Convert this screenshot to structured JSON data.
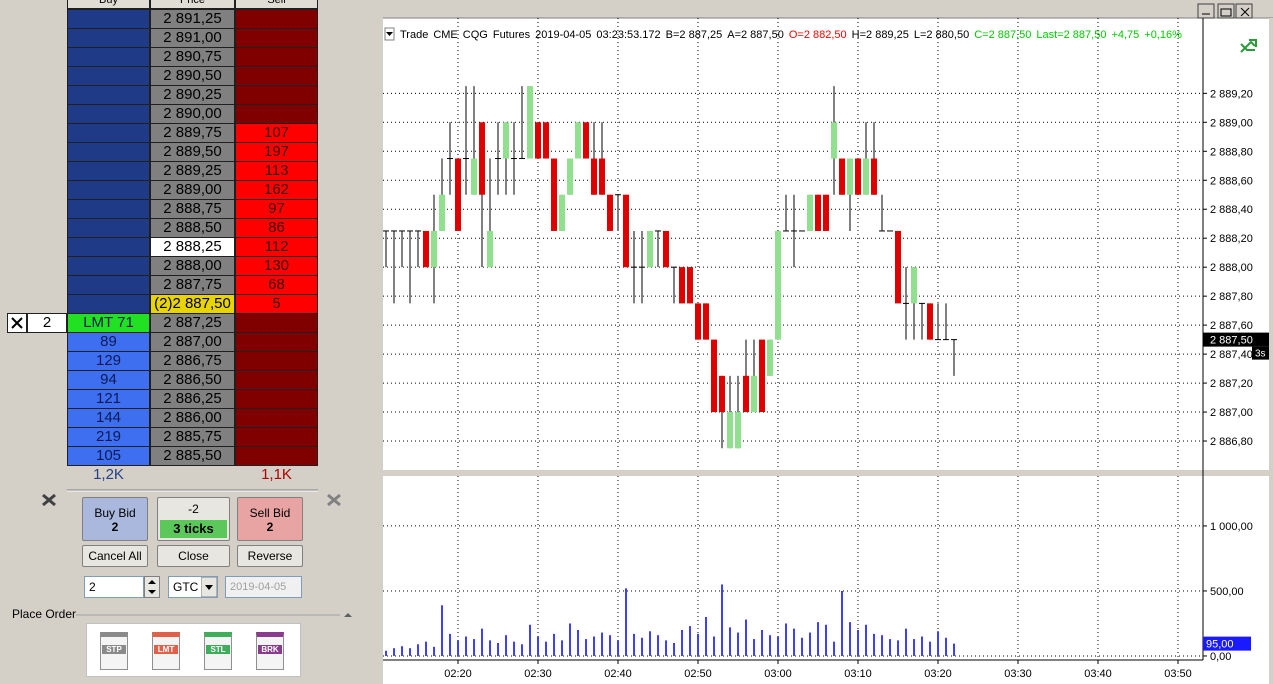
{
  "dom": {
    "headers": [
      "Buy",
      "Price",
      "Sell"
    ],
    "rows": [
      {
        "price": "2 891,25"
      },
      {
        "price": "2 891,00"
      },
      {
        "price": "2 890,75"
      },
      {
        "price": "2 890,50"
      },
      {
        "price": "2 890,25"
      },
      {
        "price": "2 890,00"
      },
      {
        "price": "2 889,75",
        "sell": 107
      },
      {
        "price": "2 889,50",
        "sell": 197
      },
      {
        "price": "2 889,25",
        "sell": 113
      },
      {
        "price": "2 889,00",
        "sell": 162
      },
      {
        "price": "2 888,75",
        "sell": 97
      },
      {
        "price": "2 888,50",
        "sell": 86
      },
      {
        "price": "2 888,25",
        "sell": 112,
        "price_bg": "#ffffff"
      },
      {
        "price": "2 888,00",
        "sell": 130
      },
      {
        "price": "2 887,75",
        "sell": 68
      },
      {
        "price": "(2)2 887,50",
        "sell": 5,
        "price_bg": "#e8d400"
      },
      {
        "price": "2 887,25",
        "buy": "LMT 71",
        "buy_bg": "#22e022",
        "order_qty": 2
      },
      {
        "price": "2 887,00",
        "buy": 89
      },
      {
        "price": "2 886,75",
        "buy": 129
      },
      {
        "price": "2 886,50",
        "buy": 94
      },
      {
        "price": "2 886,25",
        "buy": 121
      },
      {
        "price": "2 886,00",
        "buy": 144
      },
      {
        "price": "2 885,75",
        "buy": 219
      },
      {
        "price": "2 885,50",
        "buy": 105
      }
    ],
    "buy_total": "1,2K",
    "sell_total": "1,1K"
  },
  "controls": {
    "buy_button": {
      "label": "Buy Bid",
      "qty": 2
    },
    "position": -2,
    "offset": "3 ticks",
    "sell_button": {
      "label": "Sell Bid",
      "qty": 2
    },
    "buttons": [
      "Cancel All",
      "Close",
      "Reverse"
    ],
    "quantity": 2,
    "time_in_force": "GTC",
    "date": "2019-04-05",
    "section": "Place Order",
    "order_types": [
      "STP",
      "LMT",
      "STL",
      "BRK"
    ]
  },
  "info": [
    {
      "text": "Trade",
      "color": "#000000"
    },
    {
      "text": "CME",
      "color": "#000000"
    },
    {
      "text": "CQG",
      "color": "#000000"
    },
    {
      "text": "Futures",
      "color": "#000000"
    },
    {
      "text": "2019-04-05",
      "color": "#000000"
    },
    {
      "text": "03:23:53.172",
      "color": "#000000"
    },
    {
      "text": "B=2 887,25",
      "color": "#000000"
    },
    {
      "text": "A=2 887,50",
      "color": "#000000"
    },
    {
      "text": "O=2 882,50",
      "color": "#ff0000"
    },
    {
      "text": "H=2 889,25",
      "color": "#000000"
    },
    {
      "text": "L=2 880,50",
      "color": "#000000"
    },
    {
      "text": "C=2 887,50",
      "color": "#00cc00"
    },
    {
      "text": "Last=2 887,50",
      "color": "#00cc00"
    },
    {
      "text": "+4,75",
      "color": "#00cc00"
    },
    {
      "text": "+0,16%",
      "color": "#00cc00"
    }
  ],
  "chart_data": [
    {
      "type": "candlestick",
      "up_color": "#90e090",
      "down_color": "#e00000",
      "flat_color": "#000000",
      "grid": true,
      "ylim": [
        2886.6,
        2889.72
      ],
      "yticks": [
        {
          "value": 2886.8,
          "label": "2 886,80"
        },
        {
          "value": 2887.0,
          "label": "2 887,00"
        },
        {
          "value": 2887.2,
          "label": "2 887,20"
        },
        {
          "value": 2887.4,
          "label": "2 887,40"
        },
        {
          "value": 2887.6,
          "label": "2 887,60"
        },
        {
          "value": 2887.8,
          "label": "2 887,80"
        },
        {
          "value": 2888.0,
          "label": "2 888,00"
        },
        {
          "value": 2888.2,
          "label": "2 888,20"
        },
        {
          "value": 2888.4,
          "label": "2 888,40"
        },
        {
          "value": 2888.6,
          "label": "2 888,60"
        },
        {
          "value": 2888.8,
          "label": "2 888,80"
        },
        {
          "value": 2889.0,
          "label": "2 889,00"
        },
        {
          "value": 2889.2,
          "label": "2 889,20"
        }
      ],
      "last_price_label": "2 887,50",
      "timer": "3s",
      "open": [
        2888.25,
        2888.25,
        2888.25,
        2888.25,
        2888.25,
        2888.25,
        2888.0,
        2888.25,
        2888.75,
        2888.75,
        2888.75,
        2888.5,
        2889.0,
        2888.0,
        2888.75,
        2888.75,
        2888.75,
        2888.75,
        2888.75,
        2889.0,
        2889.0,
        2888.75,
        2888.25,
        2888.5,
        2888.75,
        2889.0,
        2888.75,
        2888.75,
        2888.5,
        2888.5,
        2888.5,
        2888.0,
        2888.0,
        2888.0,
        2888.25,
        2888.25,
        2888.0,
        2888.0,
        2888.0,
        2887.75,
        2887.75,
        2887.5,
        2887.25,
        2886.75,
        2886.75,
        2887.25,
        2887.0,
        2887.5,
        2887.25,
        2887.5,
        2888.25,
        2888.25,
        2888.25,
        2888.25,
        2888.5,
        2888.5,
        2888.75,
        2888.75,
        2888.5,
        2888.75,
        2888.5,
        2888.75,
        2888.25,
        2888.25,
        2888.25,
        2887.75,
        2887.75,
        2887.75,
        2887.75,
        2887.5,
        2887.5,
        2887.5,
        null,
        null,
        null,
        null,
        null,
        null,
        null,
        null,
        null,
        null,
        null,
        null,
        null,
        null,
        null,
        null,
        null,
        null,
        null,
        null,
        null,
        null,
        null,
        null,
        null,
        null,
        null,
        null
      ],
      "high": [
        2888.25,
        2888.25,
        2888.25,
        2888.25,
        2888.25,
        2888.25,
        2888.5,
        2888.75,
        2889.0,
        2888.75,
        2889.25,
        2889.25,
        2889.0,
        2888.75,
        2889.0,
        2889.0,
        2889.0,
        2889.25,
        2889.25,
        2889.0,
        2889.0,
        2888.75,
        2888.5,
        2888.75,
        2889.0,
        2889.0,
        2889.0,
        2889.0,
        2888.5,
        2888.5,
        2888.5,
        2888.25,
        2888.25,
        2888.25,
        2888.25,
        2888.25,
        2888.0,
        2888.0,
        2888.0,
        2887.75,
        2887.75,
        2887.5,
        2887.25,
        2887.25,
        2887.25,
        2887.5,
        2887.5,
        2887.5,
        2887.5,
        2888.25,
        2888.5,
        2888.5,
        2888.25,
        2888.5,
        2888.5,
        2888.5,
        2889.25,
        2888.75,
        2888.75,
        2888.75,
        2889.0,
        2889.0,
        2888.5,
        2888.25,
        2888.25,
        2888.0,
        2888.0,
        2887.75,
        2887.75,
        2887.75,
        2887.75,
        2887.5,
        null,
        null,
        null,
        null,
        null,
        null,
        null,
        null,
        null,
        null,
        null,
        null,
        null,
        null,
        null,
        null,
        null,
        null,
        null,
        null,
        null,
        null,
        null,
        null,
        null,
        null,
        null,
        null
      ],
      "low": [
        2888.0,
        2887.75,
        2888.0,
        2887.75,
        2888.0,
        2888.0,
        2887.75,
        2888.25,
        2888.5,
        2888.25,
        2888.5,
        2888.5,
        2888.0,
        2888.0,
        2888.5,
        2888.5,
        2888.5,
        2888.75,
        2888.75,
        2888.75,
        2888.75,
        2888.25,
        2888.25,
        2888.5,
        2888.75,
        2888.75,
        2888.5,
        2888.5,
        2888.25,
        2888.25,
        2888.0,
        2887.75,
        2887.75,
        2888.0,
        2888.0,
        2888.0,
        2887.75,
        2887.75,
        2887.75,
        2887.5,
        2887.5,
        2887.0,
        2886.75,
        2886.75,
        2886.75,
        2887.0,
        2887.0,
        2887.0,
        2887.25,
        2887.5,
        2888.25,
        2888.0,
        2888.25,
        2888.25,
        2888.25,
        2888.25,
        2888.5,
        2888.5,
        2888.25,
        2888.5,
        2888.5,
        2888.5,
        2888.25,
        2888.25,
        2887.75,
        2887.5,
        2887.5,
        2887.5,
        2887.5,
        2887.5,
        2887.5,
        2887.25,
        null,
        null,
        null,
        null,
        null,
        null,
        null,
        null,
        null,
        null,
        null,
        null,
        null,
        null,
        null,
        null,
        null,
        null,
        null,
        null,
        null,
        null,
        null,
        null,
        null,
        null,
        null,
        null
      ],
      "close": [
        2888.25,
        2888.25,
        2888.25,
        2888.25,
        2888.25,
        2888.0,
        2888.25,
        2888.5,
        2888.75,
        2888.25,
        2888.75,
        2888.75,
        2888.5,
        2888.25,
        2888.75,
        2889.0,
        2888.75,
        2888.75,
        2889.25,
        2888.75,
        2888.75,
        2888.25,
        2888.5,
        2888.75,
        2889.0,
        2888.75,
        2888.5,
        2888.5,
        2888.25,
        2888.5,
        2888.0,
        2888.0,
        2888.0,
        2888.25,
        2888.25,
        2888.0,
        2888.0,
        2887.75,
        2887.75,
        2887.5,
        2887.5,
        2887.0,
        2887.0,
        2887.0,
        2887.0,
        2887.0,
        2887.25,
        2887.0,
        2887.5,
        2888.25,
        2888.25,
        2888.25,
        2888.25,
        2888.5,
        2888.25,
        2888.25,
        2889.0,
        2888.5,
        2888.75,
        2888.5,
        2888.75,
        2888.5,
        2888.25,
        2888.25,
        2887.75,
        2887.75,
        2888.0,
        2887.75,
        2887.5,
        2887.5,
        2887.5,
        2887.5,
        null,
        null,
        null,
        null,
        null,
        null,
        null,
        null,
        null,
        null,
        null,
        null,
        null,
        null,
        null,
        null,
        null,
        null,
        null,
        null,
        null,
        null,
        null,
        null,
        null,
        null,
        null,
        null
      ]
    },
    {
      "type": "volume",
      "color": "#0000ee",
      "marker_color": "#1a1aff",
      "grid": true,
      "ylim": [
        -31,
        1384
      ],
      "yticks": [
        {
          "value": 0,
          "label": "0,00"
        },
        {
          "value": 500,
          "label": "500,00"
        },
        {
          "value": 1000,
          "label": "1 000,00"
        }
      ],
      "categories": [
        null,
        null,
        null,
        null,
        null,
        null,
        null,
        null,
        null,
        "02:20",
        null,
        null,
        null,
        null,
        null,
        null,
        null,
        null,
        null,
        "02:30",
        null,
        null,
        null,
        null,
        null,
        null,
        null,
        null,
        null,
        "02:40",
        null,
        null,
        null,
        null,
        null,
        null,
        null,
        null,
        null,
        "02:50",
        null,
        null,
        null,
        null,
        null,
        null,
        null,
        null,
        null,
        "03:00",
        null,
        null,
        null,
        null,
        null,
        null,
        null,
        null,
        null,
        "03:10",
        null,
        null,
        null,
        null,
        null,
        null,
        null,
        null,
        null,
        "03:20",
        null,
        null,
        null,
        null,
        null,
        null,
        null,
        null,
        null,
        "03:30",
        null,
        null,
        null,
        null,
        null,
        null,
        null,
        null,
        null,
        "03:40",
        null,
        null,
        null,
        null,
        null,
        null,
        null,
        null,
        null,
        "03:50"
      ],
      "values": [
        40,
        60,
        75,
        60,
        90,
        110,
        70,
        390,
        170,
        120,
        150,
        130,
        210,
        120,
        100,
        160,
        110,
        90,
        240,
        150,
        110,
        170,
        120,
        250,
        200,
        130,
        150,
        180,
        160,
        120,
        520,
        170,
        140,
        190,
        160,
        120,
        100,
        200,
        230,
        170,
        300,
        150,
        550,
        220,
        180,
        280,
        130,
        200,
        160,
        150,
        250,
        210,
        140,
        180,
        260,
        240,
        110,
        500,
        260,
        200,
        240,
        170,
        160,
        130,
        120,
        210,
        130,
        150,
        110,
        190,
        140,
        95,
        null,
        null,
        null,
        null,
        null,
        null,
        null,
        null,
        null,
        null,
        null,
        null,
        null,
        null,
        null,
        null,
        null,
        null,
        null,
        null,
        null,
        null,
        null,
        null,
        null,
        null,
        null,
        null
      ],
      "value_labels": [
        null,
        null,
        null,
        null,
        null,
        null,
        null,
        null,
        null,
        null,
        null,
        null,
        null,
        null,
        null,
        null,
        null,
        null,
        null,
        null,
        null,
        null,
        null,
        null,
        null,
        null,
        null,
        null,
        null,
        null,
        null,
        null,
        null,
        null,
        null,
        null,
        null,
        null,
        null,
        null,
        null,
        null,
        null,
        null,
        null,
        null,
        null,
        null,
        null,
        null,
        null,
        null,
        null,
        null,
        null,
        null,
        null,
        null,
        null,
        null,
        null,
        null,
        null,
        null,
        null,
        null,
        null,
        null,
        null,
        null,
        null,
        "95,00",
        null,
        null,
        null,
        null,
        null,
        null,
        null,
        null,
        null,
        null,
        null,
        null,
        null,
        null,
        null,
        null,
        null,
        null,
        null,
        null,
        null,
        null,
        null,
        null,
        null,
        null,
        null,
        null
      ]
    }
  ]
}
